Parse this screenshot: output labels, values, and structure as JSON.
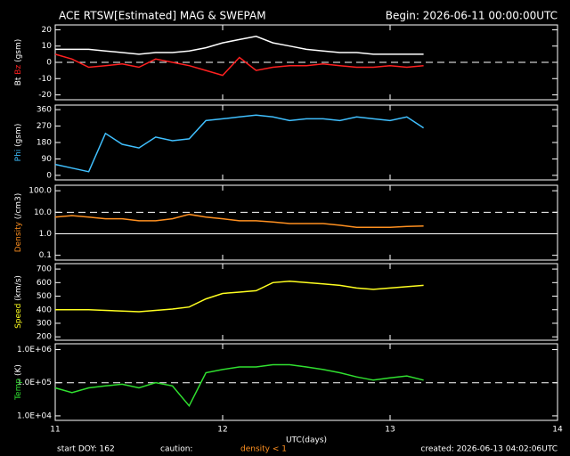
{
  "header": {
    "title": "ACE RTSW[Estimated] MAG & SWEPAM",
    "begin": "Begin: 2026-06-11 00:00:00UTC"
  },
  "footer": {
    "start": "start DOY: 162",
    "caution": "caution:",
    "density_note": "density < 1",
    "created": "created: 2026-06-13 04:02:06UTC"
  },
  "chart_data": [
    {
      "type": "line",
      "ylabel": "(gsm)",
      "xlim": [
        11,
        14
      ],
      "xticks": [
        11,
        12,
        13,
        14
      ],
      "ylim": [
        -23,
        23
      ],
      "yticks": [
        20,
        10,
        0,
        -10,
        -20
      ],
      "hlines": [
        0
      ],
      "x": [
        11.0,
        11.1,
        11.2,
        11.3,
        11.4,
        11.5,
        11.6,
        11.7,
        11.8,
        11.9,
        12.0,
        12.1,
        12.2,
        12.3,
        12.4,
        12.5,
        12.6,
        12.7,
        12.8,
        12.9,
        13.0,
        13.1,
        13.2
      ],
      "series": [
        {
          "name": "Bt",
          "color": "#ffffff",
          "values": [
            8,
            8,
            8,
            7,
            6,
            5,
            6,
            6,
            7,
            9,
            12,
            14,
            16,
            12,
            10,
            8,
            7,
            6,
            6,
            5,
            5,
            5,
            5
          ]
        },
        {
          "name": "Bz",
          "color": "#ff2020",
          "values": [
            5,
            2,
            -3,
            -2,
            -1,
            -3,
            2,
            0,
            -2,
            -5,
            -8,
            3,
            -5,
            -3,
            -2,
            -2,
            -1,
            -2,
            -3,
            -3,
            -2,
            -3,
            -2
          ]
        }
      ]
    },
    {
      "type": "line",
      "ylabel": "(gsm)",
      "xlim": [
        11,
        14
      ],
      "xticks": [
        11,
        12,
        13,
        14
      ],
      "ylim": [
        -25,
        385
      ],
      "yticks": [
        360,
        270,
        180,
        90,
        0
      ],
      "hlines": [],
      "x": [
        11.0,
        11.1,
        11.2,
        11.3,
        11.4,
        11.5,
        11.6,
        11.7,
        11.8,
        11.9,
        12.0,
        12.1,
        12.2,
        12.3,
        12.4,
        12.5,
        12.6,
        12.7,
        12.8,
        12.9,
        13.0,
        13.1,
        13.2
      ],
      "series": [
        {
          "name": "Phi",
          "color": "#40c0ff",
          "values": [
            60,
            40,
            20,
            230,
            170,
            150,
            210,
            190,
            200,
            300,
            310,
            320,
            330,
            320,
            300,
            310,
            310,
            300,
            320,
            310,
            300,
            320,
            260
          ]
        }
      ]
    },
    {
      "type": "line",
      "ylabel": "(/cm3)",
      "log": true,
      "xlim": [
        11,
        14
      ],
      "xticks": [
        11,
        12,
        13,
        14
      ],
      "ylim": [
        0.06,
        180
      ],
      "yticks": [
        {
          "value": 100,
          "label": "100.0"
        },
        {
          "value": 10,
          "label": "10.0"
        },
        {
          "value": 1,
          "label": "1.0"
        },
        {
          "value": 0.1,
          "label": "0.1"
        }
      ],
      "hlines": [
        10,
        1
      ],
      "x": [
        11.0,
        11.1,
        11.2,
        11.3,
        11.4,
        11.5,
        11.6,
        11.7,
        11.8,
        11.9,
        12.0,
        12.1,
        12.2,
        12.3,
        12.4,
        12.5,
        12.6,
        12.7,
        12.8,
        12.9,
        13.0,
        13.1,
        13.2
      ],
      "series": [
        {
          "name": "Density",
          "color": "#ff9020",
          "values": [
            6,
            7,
            6,
            5,
            5,
            4,
            4,
            5,
            8,
            6,
            5,
            4,
            4,
            3.5,
            3,
            3,
            3,
            2.5,
            2,
            2,
            2,
            2.2,
            2.3
          ]
        }
      ]
    },
    {
      "type": "line",
      "ylabel": "(km/s)",
      "xlim": [
        11,
        14
      ],
      "xticks": [
        11,
        12,
        13,
        14
      ],
      "ylim": [
        175,
        740
      ],
      "yticks": [
        700,
        600,
        500,
        400,
        300,
        200
      ],
      "hlines": [],
      "x": [
        11.0,
        11.1,
        11.2,
        11.3,
        11.4,
        11.5,
        11.6,
        11.7,
        11.8,
        11.9,
        12.0,
        12.1,
        12.2,
        12.3,
        12.4,
        12.5,
        12.6,
        12.7,
        12.8,
        12.9,
        13.0,
        13.1,
        13.2
      ],
      "series": [
        {
          "name": "Speed",
          "color": "#ffff20",
          "values": [
            400,
            400,
            400,
            395,
            390,
            385,
            395,
            405,
            420,
            480,
            520,
            530,
            540,
            600,
            610,
            600,
            590,
            580,
            560,
            550,
            560,
            570,
            580
          ]
        }
      ]
    },
    {
      "type": "line",
      "ylabel": "(K)",
      "log": true,
      "xlim": [
        11,
        14
      ],
      "xticks": [
        11,
        12,
        13,
        14
      ],
      "ylim": [
        7300,
        1500000
      ],
      "yticks": [
        {
          "value": 1000000,
          "label": "1.0E+06"
        },
        {
          "value": 100000,
          "label": "1.0E+05"
        },
        {
          "value": 10000,
          "label": "1.0E+04"
        }
      ],
      "hlines": [
        100000
      ],
      "xlabel": "UTC(days)",
      "x": [
        11.0,
        11.1,
        11.2,
        11.3,
        11.4,
        11.5,
        11.6,
        11.7,
        11.8,
        11.9,
        12.0,
        12.1,
        12.2,
        12.3,
        12.4,
        12.5,
        12.6,
        12.7,
        12.8,
        12.9,
        13.0,
        13.1,
        13.2
      ],
      "series": [
        {
          "name": "Temp",
          "color": "#30e030",
          "values": [
            70000,
            50000,
            70000,
            80000,
            90000,
            70000,
            100000,
            80000,
            20000,
            200000,
            250000,
            300000,
            300000,
            350000,
            350000,
            300000,
            250000,
            200000,
            150000,
            120000,
            140000,
            160000,
            120000
          ]
        }
      ]
    }
  ]
}
